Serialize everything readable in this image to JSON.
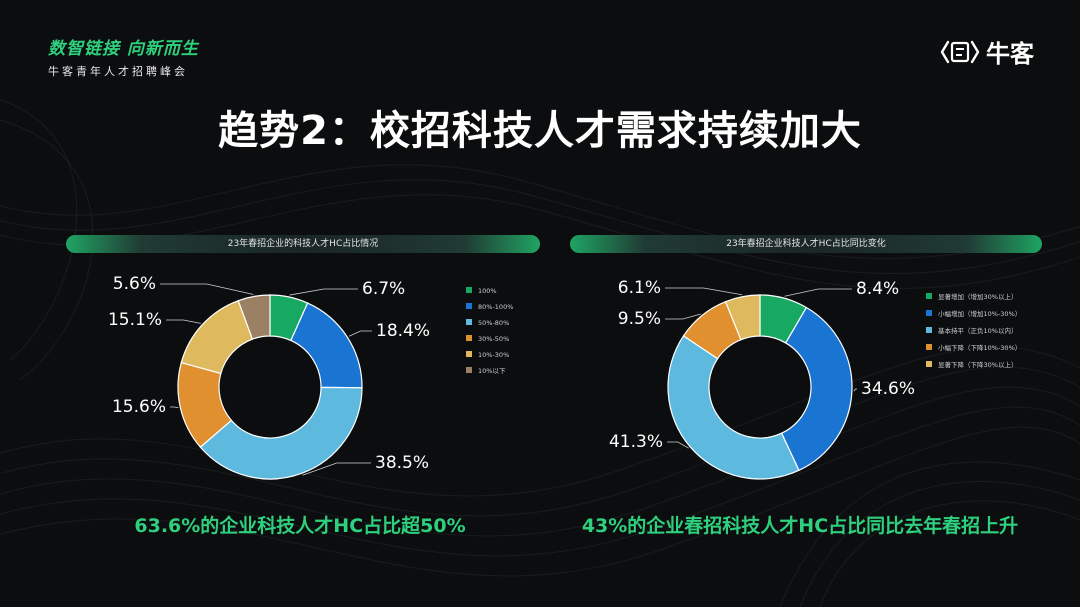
{
  "brand": {
    "slogan": "数智链接 向新而生",
    "event": "牛客青年人才招聘峰会",
    "logo_text": "牛客"
  },
  "title": "趋势2：校招科技人才需求持续加大",
  "chart_data": [
    {
      "type": "pie",
      "title": "23年春招企业的科技人才HC占比情况",
      "legend_position": "right",
      "slices": [
        {
          "label": "100%",
          "value": 6.7,
          "display": "6.7%",
          "color": "#17a862"
        },
        {
          "label": "80%-100%",
          "value": 18.4,
          "display": "18.4%",
          "color": "#1a74d2"
        },
        {
          "label": "50%-80%",
          "value": 38.5,
          "display": "38.5%",
          "color": "#5eb9df"
        },
        {
          "label": "30%-50%",
          "value": 15.6,
          "display": "15.6%",
          "color": "#e0902e"
        },
        {
          "label": "10%-30%",
          "value": 15.1,
          "display": "15.1%",
          "color": "#dfb95d"
        },
        {
          "label": "10%以下",
          "value": 5.6,
          "display": "5.6%",
          "color": "#9c8064"
        }
      ],
      "conclusion": "63.6%的企业科技人才HC占比超50%"
    },
    {
      "type": "pie",
      "title": "23年春招企业科技人才HC占比同比变化",
      "legend_position": "right",
      "slices": [
        {
          "label": "显著增加（增加30%以上）",
          "value": 8.4,
          "display": "8.4%",
          "color": "#17a862"
        },
        {
          "label": "小幅增加（增加10%-30%）",
          "value": 34.6,
          "display": "34.6%",
          "color": "#1a74d2"
        },
        {
          "label": "基本持平（正负10%以内）",
          "value": 41.3,
          "display": "41.3%",
          "color": "#5eb9df"
        },
        {
          "label": "小幅下降（下降10%-30%）",
          "value": 9.5,
          "display": "9.5%",
          "color": "#e0902e"
        },
        {
          "label": "显著下降（下降30%以上）",
          "value": 6.1,
          "display": "6.1%",
          "color": "#dfb95d"
        }
      ],
      "conclusion": "43%的企业春招科技人才HC占比同比去年春招上升"
    }
  ]
}
